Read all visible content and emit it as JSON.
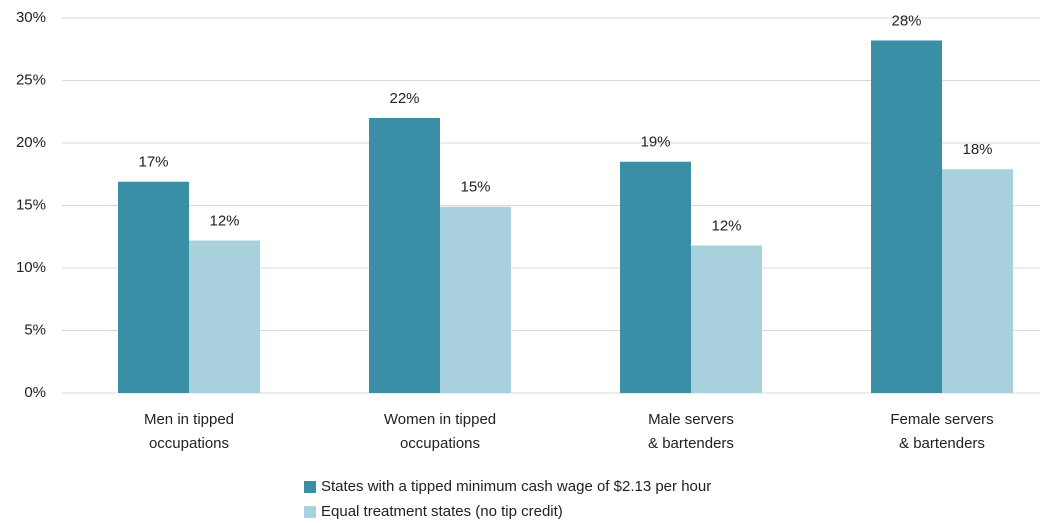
{
  "chart_data": {
    "type": "bar",
    "categories": [
      [
        "Men in tipped",
        "occupations"
      ],
      [
        "Women in tipped",
        "occupations"
      ],
      [
        "Male servers",
        "& bartenders"
      ],
      [
        "Female servers",
        "& bartenders"
      ]
    ],
    "series": [
      {
        "name": "States with a tipped minimum cash wage of $2.13 per hour",
        "color": "#3a8ea5",
        "values": [
          16.9,
          22.0,
          18.5,
          28.2
        ],
        "value_labels": [
          "17%",
          "22%",
          "19%",
          "28%"
        ]
      },
      {
        "name": "Equal treatment states (no tip credit)",
        "color": "#a9d0dd",
        "values": [
          12.2,
          14.9,
          11.8,
          17.9
        ],
        "value_labels": [
          "12%",
          "15%",
          "12%",
          "18%"
        ]
      }
    ],
    "ylim": [
      0,
      30
    ],
    "yticks": [
      {
        "value": 0,
        "label": "0%"
      },
      {
        "value": 5,
        "label": "5%"
      },
      {
        "value": 10,
        "label": "10%"
      },
      {
        "value": 15,
        "label": "15%"
      },
      {
        "value": 20,
        "label": "20%"
      },
      {
        "value": 25,
        "label": "25%"
      },
      {
        "value": 30,
        "label": "30%"
      }
    ],
    "grid": true,
    "legend": "bottom"
  }
}
